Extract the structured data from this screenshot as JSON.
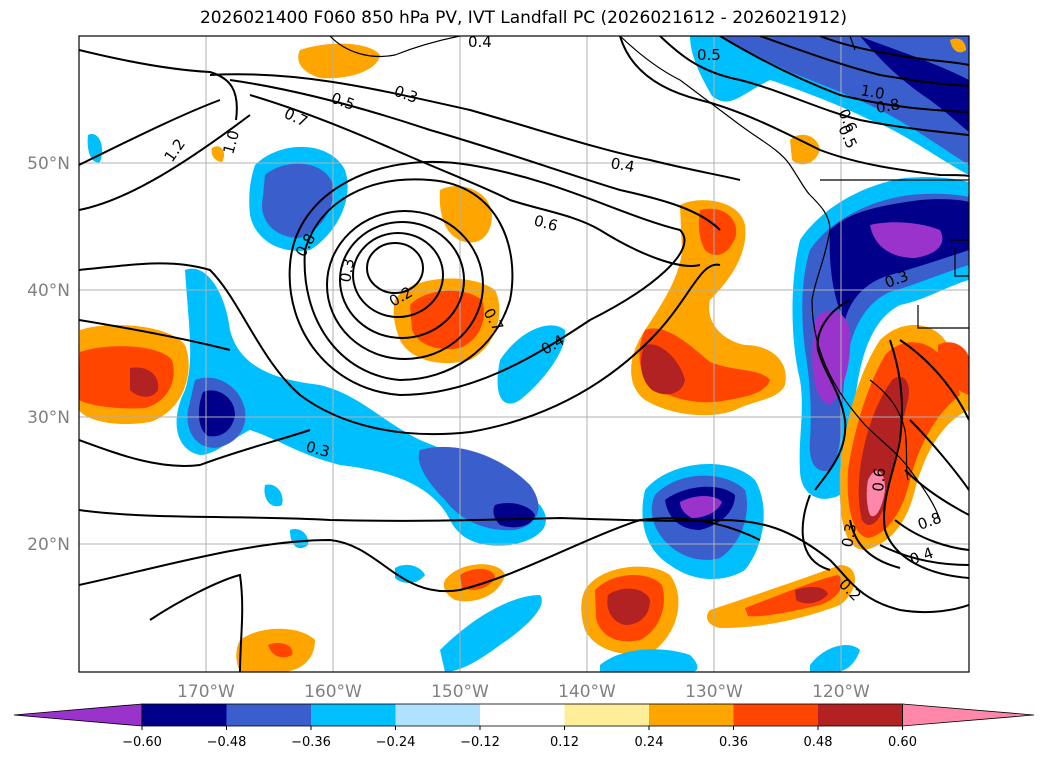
{
  "title": "2026021400 F060 850 hPa PV, IVT Landfall PC (2026021612 - 2026021912)",
  "lat_labels": [
    "50°N",
    "40°N",
    "30°N",
    "20°N"
  ],
  "lon_labels": [
    "170°W",
    "160°W",
    "150°W",
    "140°W",
    "130°W",
    "120°W"
  ],
  "colorbar": {
    "ticks": [
      "−0.60",
      "−0.48",
      "−0.36",
      "−0.24",
      "−0.12",
      "0.12",
      "0.24",
      "0.36",
      "0.48",
      "0.60"
    ],
    "colors": [
      "#9933cc",
      "#00008b",
      "#3a5fcd",
      "#00bfff",
      "#b0e2ff",
      "#ffffff",
      "#ffee99",
      "#ffa500",
      "#ff4500",
      "#b22222",
      "#ff88aa"
    ]
  },
  "contour_labels": [
    "0.4",
    "0.5",
    "0.3",
    "0.5",
    "0.7",
    "1.0",
    "1.2",
    "0.4",
    "0.6",
    "0.8",
    "0.3",
    "0.2",
    "0.7",
    "0.4",
    "0.3",
    "1.0",
    "0.8",
    "0.6",
    "0.5",
    "0.3",
    "0.6",
    "0.8",
    "0.4",
    "0.3",
    "0.2"
  ]
}
